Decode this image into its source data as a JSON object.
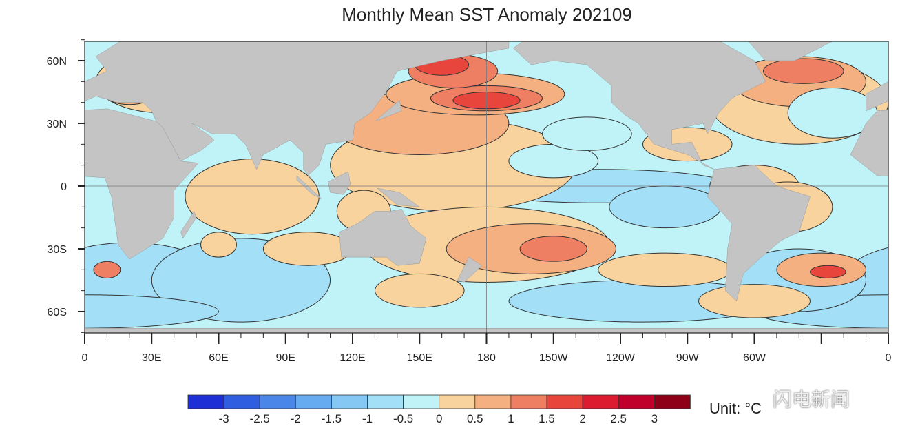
{
  "title": "Monthly Mean SST Anomaly 202109",
  "map": {
    "variable": "SST anomaly",
    "lon_labels": [
      "0",
      "30E",
      "60E",
      "90E",
      "120E",
      "150E",
      "180",
      "150W",
      "120W",
      "90W",
      "60W",
      "",
      "0"
    ],
    "lat_labels": [
      "60N",
      "30N",
      "0",
      "30S",
      "60S"
    ],
    "lat_values": [
      60,
      30,
      0,
      -30,
      -60
    ],
    "land_color": "#c4c4c4"
  },
  "colorbar": {
    "labels": [
      "-3",
      "-2.5",
      "-2",
      "-1.5",
      "-1",
      "-0.5",
      "0",
      "0.5",
      "1",
      "1.5",
      "2",
      "2.5",
      "3"
    ],
    "colors": [
      "#1f2fd6",
      "#2f5fe0",
      "#4a86e8",
      "#66aaf0",
      "#86c8f4",
      "#a3e0f7",
      "#bff3f8",
      "#f8d39d",
      "#f4b080",
      "#ee7f62",
      "#e8463c",
      "#dc1a30",
      "#c0002a",
      "#8e0018"
    ],
    "unit_label": "Unit: °C"
  },
  "watermark": "闪电新闻"
}
